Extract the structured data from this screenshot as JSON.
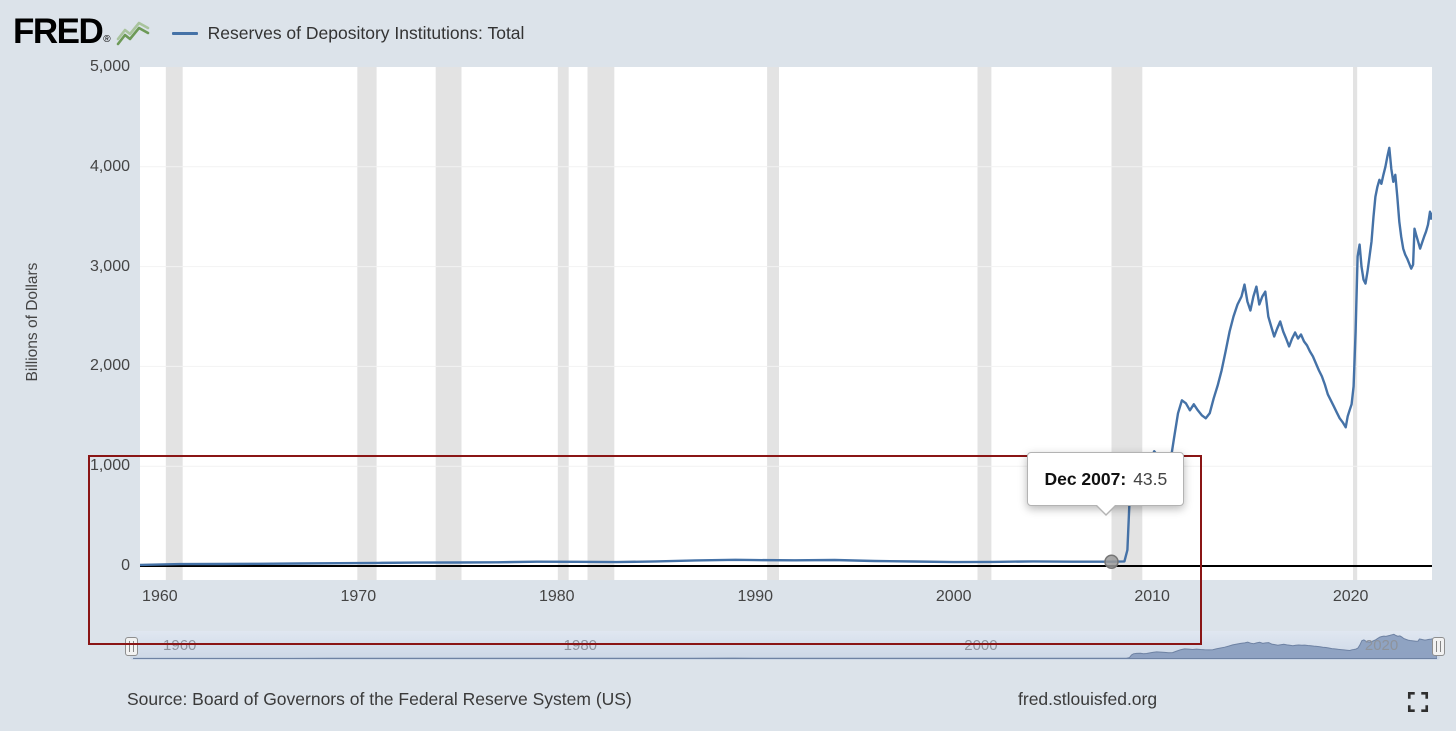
{
  "header": {
    "logo_text": "FRED",
    "logo_reg": "®",
    "legend_label": "Reserves of Depository Institutions: Total"
  },
  "chart_data": {
    "type": "line",
    "title": "Reserves of Depository Institutions: Total",
    "ylabel": "Billions of Dollars",
    "xlabel": "",
    "ylim": [
      0,
      5000
    ],
    "xlim": [
      1959.0,
      2024.1
    ],
    "grid": "off",
    "legend_position": "top",
    "line_color": "#4572a7",
    "recession_color": "#e3e3e3",
    "y_ticks": [
      {
        "label": "0",
        "value": 0
      },
      {
        "label": "1,000",
        "value": 1000
      },
      {
        "label": "2,000",
        "value": 2000
      },
      {
        "label": "3,000",
        "value": 3000
      },
      {
        "label": "4,000",
        "value": 4000
      },
      {
        "label": "5,000",
        "value": 5000
      }
    ],
    "x_ticks": [
      {
        "label": "1960",
        "year": 1960
      },
      {
        "label": "1970",
        "year": 1970
      },
      {
        "label": "1980",
        "year": 1980
      },
      {
        "label": "1990",
        "year": 1990
      },
      {
        "label": "2000",
        "year": 2000
      },
      {
        "label": "2010",
        "year": 2010
      },
      {
        "label": "2020",
        "year": 2020
      }
    ],
    "recessions": [
      [
        1960.3,
        1961.15
      ],
      [
        1969.95,
        1970.92
      ],
      [
        1973.9,
        1975.2
      ],
      [
        1980.05,
        1980.6
      ],
      [
        1981.55,
        1982.9
      ],
      [
        1990.6,
        1991.2
      ],
      [
        2001.2,
        2001.9
      ],
      [
        2007.95,
        2009.5
      ],
      [
        2020.12,
        2020.33
      ]
    ],
    "series": [
      {
        "name": "Reserves of Depository Institutions: Total",
        "points": [
          [
            1959,
            11.5
          ],
          [
            1961,
            19
          ],
          [
            1963,
            20
          ],
          [
            1965,
            22
          ],
          [
            1967,
            25
          ],
          [
            1969,
            28
          ],
          [
            1971,
            31
          ],
          [
            1973,
            34
          ],
          [
            1975,
            35
          ],
          [
            1977,
            37
          ],
          [
            1979,
            43
          ],
          [
            1981,
            42
          ],
          [
            1983,
            39
          ],
          [
            1985,
            46
          ],
          [
            1987,
            56
          ],
          [
            1989,
            62
          ],
          [
            1990,
            59
          ],
          [
            1992,
            57
          ],
          [
            1994,
            60
          ],
          [
            1996,
            50
          ],
          [
            1998,
            45
          ],
          [
            2000,
            39
          ],
          [
            2002,
            41
          ],
          [
            2004,
            46
          ],
          [
            2006,
            43
          ],
          [
            2007.95,
            43.5
          ],
          [
            2008.6,
            46
          ],
          [
            2008.75,
            160
          ],
          [
            2008.85,
            600
          ],
          [
            2008.95,
            820
          ],
          [
            2009.1,
            880
          ],
          [
            2009.3,
            900
          ],
          [
            2009.45,
            830
          ],
          [
            2009.6,
            860
          ],
          [
            2009.8,
            1000
          ],
          [
            2009.95,
            1080
          ],
          [
            2010.1,
            1150
          ],
          [
            2010.3,
            1100
          ],
          [
            2010.5,
            1050
          ],
          [
            2010.7,
            1000
          ],
          [
            2010.9,
            1020
          ],
          [
            2011.1,
            1280
          ],
          [
            2011.3,
            1530
          ],
          [
            2011.5,
            1660
          ],
          [
            2011.7,
            1630
          ],
          [
            2011.9,
            1560
          ],
          [
            2012.1,
            1620
          ],
          [
            2012.3,
            1560
          ],
          [
            2012.5,
            1510
          ],
          [
            2012.7,
            1480
          ],
          [
            2012.9,
            1530
          ],
          [
            2013.1,
            1680
          ],
          [
            2013.3,
            1810
          ],
          [
            2013.5,
            1960
          ],
          [
            2013.7,
            2150
          ],
          [
            2013.9,
            2350
          ],
          [
            2014.1,
            2500
          ],
          [
            2014.3,
            2620
          ],
          [
            2014.5,
            2700
          ],
          [
            2014.65,
            2820
          ],
          [
            2014.8,
            2650
          ],
          [
            2014.95,
            2560
          ],
          [
            2015.1,
            2700
          ],
          [
            2015.25,
            2800
          ],
          [
            2015.4,
            2620
          ],
          [
            2015.55,
            2700
          ],
          [
            2015.7,
            2750
          ],
          [
            2015.85,
            2500
          ],
          [
            2016,
            2400
          ],
          [
            2016.15,
            2300
          ],
          [
            2016.3,
            2380
          ],
          [
            2016.45,
            2450
          ],
          [
            2016.6,
            2350
          ],
          [
            2016.75,
            2280
          ],
          [
            2016.9,
            2200
          ],
          [
            2017.05,
            2280
          ],
          [
            2017.2,
            2340
          ],
          [
            2017.35,
            2280
          ],
          [
            2017.5,
            2320
          ],
          [
            2017.65,
            2250
          ],
          [
            2017.8,
            2210
          ],
          [
            2017.95,
            2150
          ],
          [
            2018.1,
            2100
          ],
          [
            2018.25,
            2030
          ],
          [
            2018.4,
            1960
          ],
          [
            2018.55,
            1900
          ],
          [
            2018.7,
            1820
          ],
          [
            2018.85,
            1720
          ],
          [
            2019,
            1660
          ],
          [
            2019.15,
            1600
          ],
          [
            2019.3,
            1540
          ],
          [
            2019.45,
            1480
          ],
          [
            2019.6,
            1440
          ],
          [
            2019.75,
            1390
          ],
          [
            2019.85,
            1500
          ],
          [
            2019.95,
            1560
          ],
          [
            2020.05,
            1620
          ],
          [
            2020.15,
            1800
          ],
          [
            2020.25,
            2350
          ],
          [
            2020.35,
            3100
          ],
          [
            2020.45,
            3220
          ],
          [
            2020.55,
            3000
          ],
          [
            2020.65,
            2870
          ],
          [
            2020.75,
            2830
          ],
          [
            2020.85,
            2950
          ],
          [
            2020.95,
            3100
          ],
          [
            2021.05,
            3250
          ],
          [
            2021.15,
            3500
          ],
          [
            2021.25,
            3700
          ],
          [
            2021.35,
            3800
          ],
          [
            2021.45,
            3870
          ],
          [
            2021.55,
            3830
          ],
          [
            2021.65,
            3920
          ],
          [
            2021.75,
            4000
          ],
          [
            2021.85,
            4100
          ],
          [
            2021.95,
            4190
          ],
          [
            2022.05,
            3980
          ],
          [
            2022.15,
            3850
          ],
          [
            2022.25,
            3920
          ],
          [
            2022.35,
            3700
          ],
          [
            2022.45,
            3450
          ],
          [
            2022.55,
            3300
          ],
          [
            2022.65,
            3180
          ],
          [
            2022.75,
            3120
          ],
          [
            2022.85,
            3080
          ],
          [
            2022.95,
            3030
          ],
          [
            2023.05,
            2980
          ],
          [
            2023.15,
            3020
          ],
          [
            2023.22,
            3380
          ],
          [
            2023.3,
            3320
          ],
          [
            2023.4,
            3250
          ],
          [
            2023.5,
            3180
          ],
          [
            2023.6,
            3240
          ],
          [
            2023.7,
            3300
          ],
          [
            2023.8,
            3350
          ],
          [
            2023.9,
            3420
          ],
          [
            2024,
            3550
          ],
          [
            2024.05,
            3480
          ],
          [
            2024.09,
            3530
          ]
        ]
      }
    ],
    "tooltip": {
      "date_label": "Dec 2007:",
      "value_label": "43.5",
      "x": 2007.95,
      "y": 43.5
    }
  },
  "annotation": {
    "type": "highlight-box",
    "color": "#8a1515"
  },
  "slider": {
    "labels": [
      {
        "label": "1960",
        "year": 1960
      },
      {
        "label": "1980",
        "year": 1980
      },
      {
        "label": "2000",
        "year": 2000
      },
      {
        "label": "2020",
        "year": 2020
      }
    ]
  },
  "footer": {
    "source": "Source: Board of Governors of the Federal Reserve System (US)",
    "site": "fred.stlouisfed.org"
  }
}
